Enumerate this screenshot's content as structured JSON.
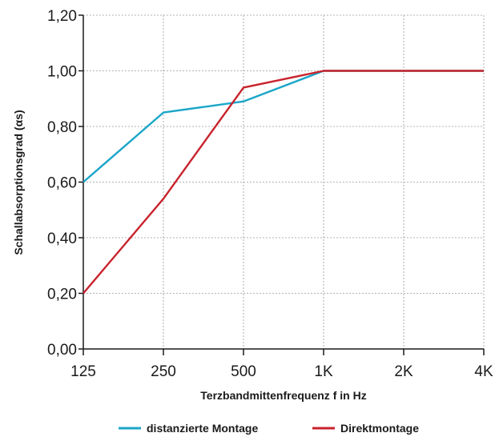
{
  "chart_data": {
    "type": "line",
    "categories": [
      "125",
      "250",
      "500",
      "1K",
      "2K",
      "4K"
    ],
    "xlabel": "Terzbandmittenfrequenz f in Hz",
    "ylabel": "Schallabsorptionsgrad (αs)",
    "ylim": [
      0,
      1.2
    ],
    "yticks": [
      "0,00",
      "0,20",
      "0,40",
      "0,60",
      "0,80",
      "1,00",
      "1,20"
    ],
    "grid": true,
    "legend_position": "bottom",
    "series": [
      {
        "name": "distanzierte Montage",
        "color": "#1aa6c9",
        "values": [
          0.6,
          0.85,
          0.89,
          1.0,
          1.0,
          1.0
        ]
      },
      {
        "name": "Direktmontage",
        "color": "#c8232c",
        "values": [
          0.2,
          0.54,
          0.94,
          1.0,
          1.0,
          1.0
        ]
      }
    ]
  }
}
